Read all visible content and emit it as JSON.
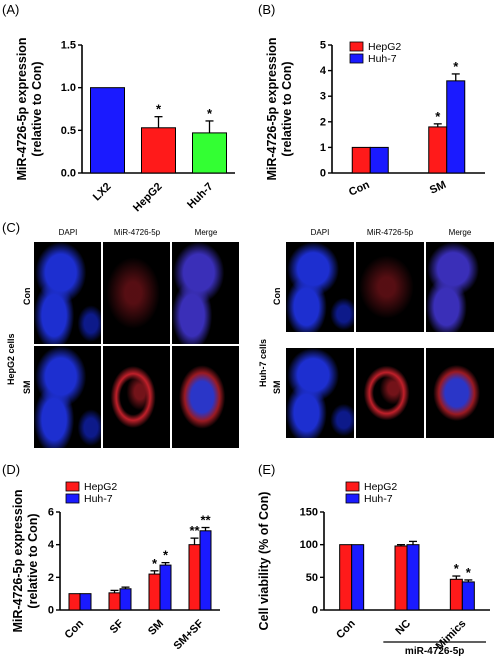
{
  "panels": {
    "A": {
      "label": "(A)"
    },
    "B": {
      "label": "(B)"
    },
    "C": {
      "label": "(C)"
    },
    "D": {
      "label": "(D)"
    },
    "E": {
      "label": "(E)"
    }
  },
  "colors": {
    "red": "#ff1a1a",
    "blue": "#1a1aff",
    "green": "#33ff33",
    "lx2": "#1a1aff",
    "nuclei": "#1d2fd0",
    "mirna": "#c0202a"
  },
  "microscopy": {
    "left": {
      "cell_label": "HepG2 cells",
      "headers": [
        "DAPI",
        "MiR-4726-5p",
        "Merge"
      ],
      "rows": [
        "Con",
        "SM"
      ]
    },
    "right": {
      "cell_label": "Huh-7 cells",
      "headers": [
        "DAPI",
        "MiR-4726-5p",
        "Merge"
      ],
      "rows": [
        "Con",
        "SM"
      ]
    }
  },
  "chart_data": [
    {
      "id": "A",
      "type": "bar",
      "ylabel": "MiR-4726-5p expression (relative to Con)",
      "ylabel_lines": [
        "MiR-4726-5p expression",
        "(relative to Con)"
      ],
      "categories": [
        "LX2",
        "HepG2",
        "Huh-7"
      ],
      "values": [
        1.0,
        0.53,
        0.47
      ],
      "errors": [
        0,
        0.13,
        0.14
      ],
      "colors": [
        "#1a1aff",
        "#ff1a1a",
        "#33ff33"
      ],
      "sig": [
        "",
        "*",
        "*"
      ],
      "ylim": [
        0,
        1.5
      ],
      "yticks": [
        "0.0",
        "0.5",
        "1.0",
        "1.5"
      ],
      "ytick_values": [
        0,
        0.5,
        1.0,
        1.5
      ]
    },
    {
      "id": "B",
      "type": "bar",
      "ylabel": "MiR-4726-5p expression (relative to Con)",
      "ylabel_lines": [
        "MiR-4726-5p expression",
        "(relative to Con)"
      ],
      "categories": [
        "Con",
        "SM"
      ],
      "series": [
        {
          "name": "HepG2",
          "color": "#ff1a1a",
          "values": [
            1.0,
            1.8
          ],
          "errors": [
            0,
            0.12
          ],
          "sig": [
            "",
            "*"
          ]
        },
        {
          "name": "Huh-7",
          "color": "#1a1aff",
          "values": [
            1.0,
            3.6
          ],
          "errors": [
            0,
            0.27
          ],
          "sig": [
            "",
            "*"
          ]
        }
      ],
      "ylim": [
        0,
        5
      ],
      "yticks": [
        "0",
        "1",
        "2",
        "3",
        "4",
        "5"
      ],
      "ytick_values": [
        0,
        1,
        2,
        3,
        4,
        5
      ],
      "legend": "top-left"
    },
    {
      "id": "D",
      "type": "bar",
      "ylabel": "MiR-4726-5p expression (relative to Con)",
      "ylabel_lines": [
        "MiR-4726-5p expression",
        "(relative to Con)"
      ],
      "categories": [
        "Con",
        "SF",
        "SM",
        "SM+SF"
      ],
      "series": [
        {
          "name": "HepG2",
          "color": "#ff1a1a",
          "values": [
            1.0,
            1.05,
            2.2,
            4.0
          ],
          "errors": [
            0,
            0.15,
            0.2,
            0.4
          ],
          "sig": [
            "",
            "",
            "*",
            "**"
          ]
        },
        {
          "name": "Huh-7",
          "color": "#1a1aff",
          "values": [
            1.0,
            1.3,
            2.75,
            4.85
          ],
          "errors": [
            0,
            0.1,
            0.15,
            0.2
          ],
          "sig": [
            "",
            "",
            "*",
            "**"
          ]
        }
      ],
      "ylim": [
        0,
        6
      ],
      "yticks": [
        "0",
        "2",
        "4",
        "6"
      ],
      "ytick_values": [
        0,
        2,
        4,
        6
      ],
      "legend": "top-left"
    },
    {
      "id": "E",
      "type": "bar",
      "ylabel": "Cell viability (% of Con)",
      "ylabel_lines": [
        "Cell viability (% of Con)"
      ],
      "categories": [
        "Con",
        "NC",
        "Mimics"
      ],
      "group_label": "miR-4726-5p",
      "series": [
        {
          "name": "HepG2",
          "color": "#ff1a1a",
          "values": [
            100,
            98,
            47
          ],
          "errors": [
            0,
            2,
            5
          ],
          "sig": [
            "",
            "",
            "*"
          ]
        },
        {
          "name": "Huh-7",
          "color": "#1a1aff",
          "values": [
            100,
            100,
            43
          ],
          "errors": [
            0,
            5,
            3
          ],
          "sig": [
            "",
            "",
            "*"
          ]
        }
      ],
      "ylim": [
        0,
        150
      ],
      "yticks": [
        "0",
        "50",
        "100",
        "150"
      ],
      "ytick_values": [
        0,
        50,
        100,
        150
      ],
      "legend": "top-center"
    }
  ]
}
